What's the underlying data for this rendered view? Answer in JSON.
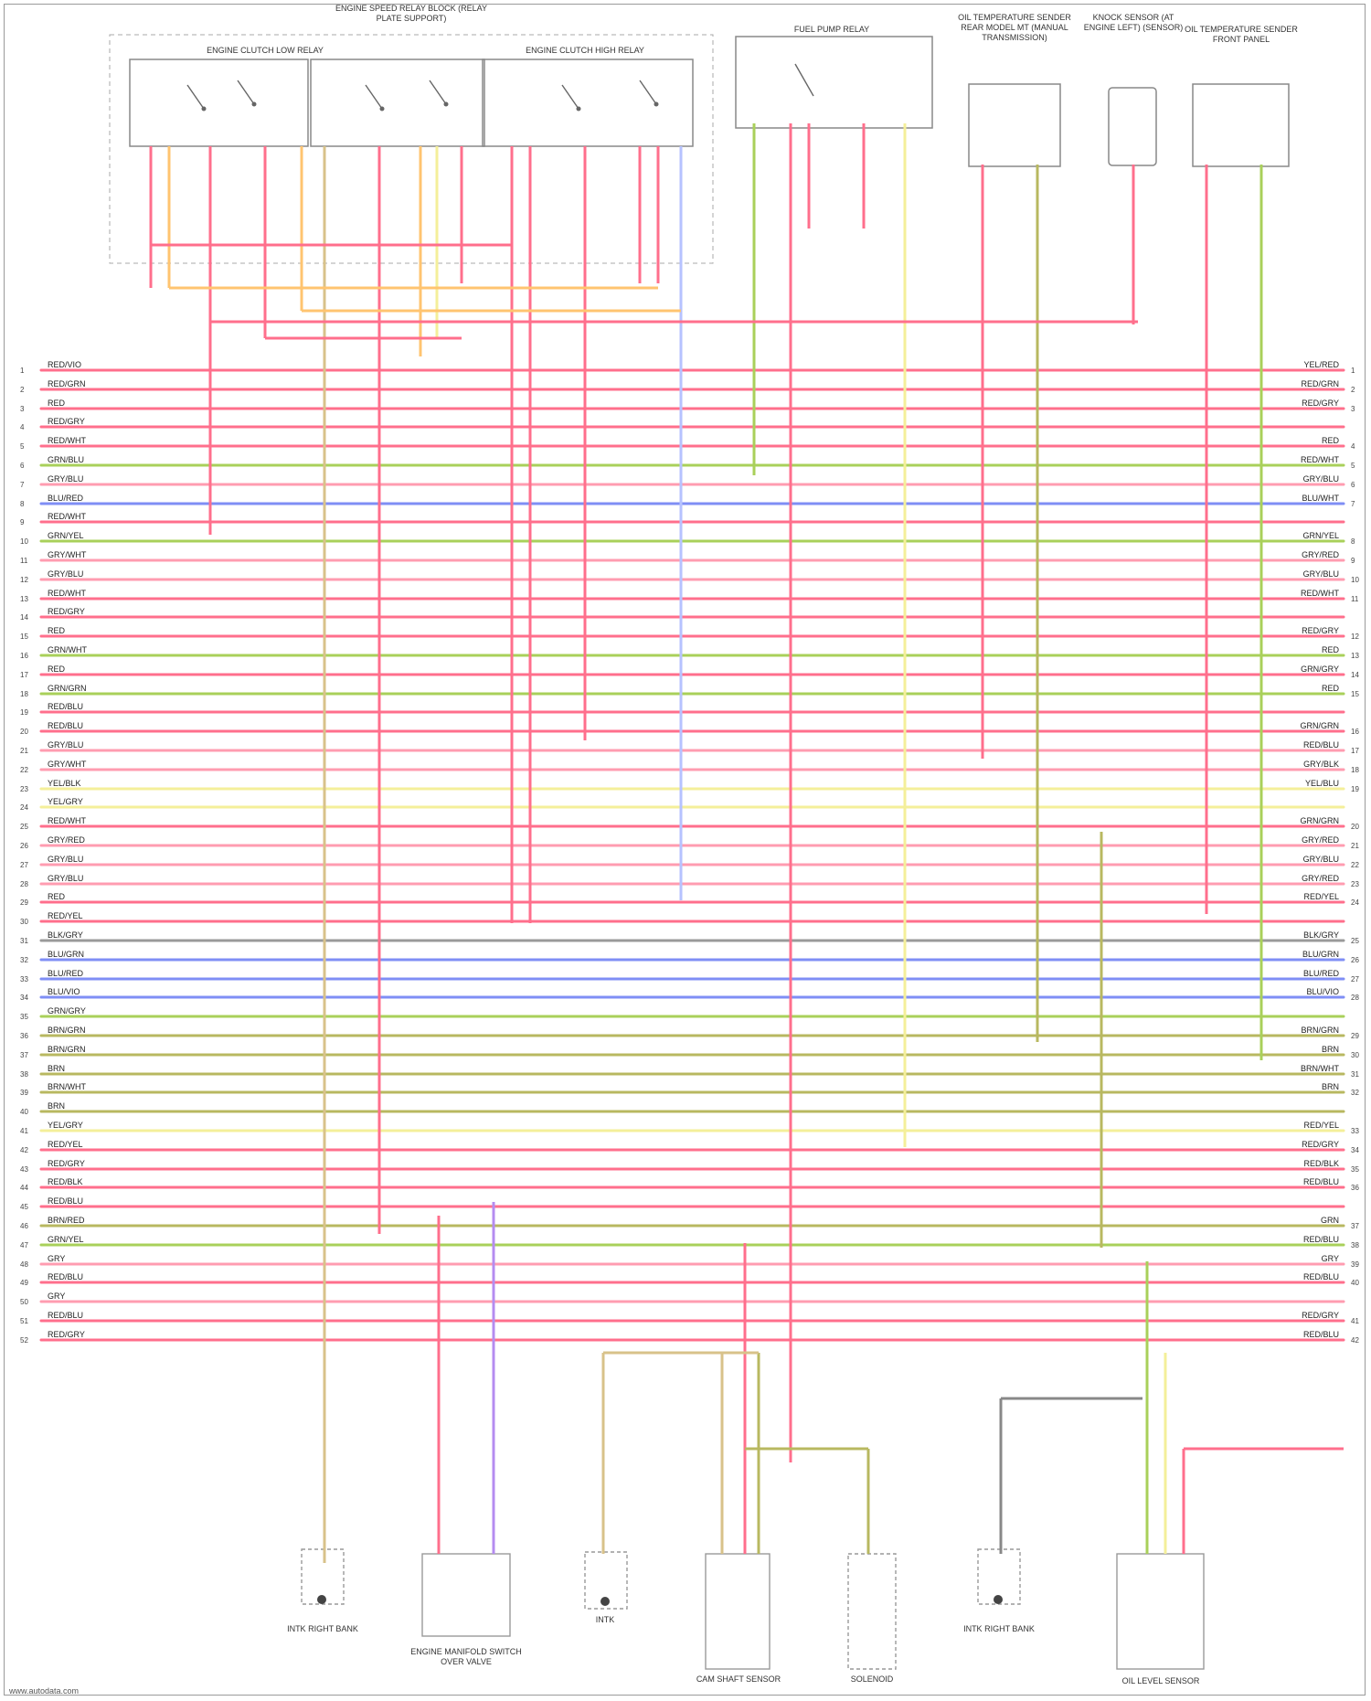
{
  "relay_block": {
    "title": "ENGINE SPEED RELAY BLOCK (RELAY PLATE SUPPORT)",
    "relays": [
      {
        "label": "ENGINE CLUTCH LOW RELAY"
      },
      {
        "label": "ENGINE CLUTCH HIGH RELAY"
      }
    ]
  },
  "components_top": [
    {
      "key": "fuel_pump_relay",
      "label": "FUEL PUMP RELAY"
    },
    {
      "key": "oil_temp_sender_manual",
      "label": "OIL TEMPERATURE SENDER REAR MODEL MT (MANUAL TRANSMISSION)"
    },
    {
      "key": "knock_sensor",
      "label": "KNOCK SENSOR (AT ENGINE LEFT) (SENSOR)"
    },
    {
      "key": "oil_temp_sender_front",
      "label": "OIL TEMPERATURE SENDER FRONT PANEL"
    }
  ],
  "components_bottom": [
    {
      "key": "c1",
      "label": "INTK RIGHT BANK"
    },
    {
      "key": "c2",
      "label": "ENGINE MANIFOLD SWITCH OVER VALVE"
    },
    {
      "key": "c3",
      "label": "INTK"
    },
    {
      "key": "c4",
      "label": "CAM SHAFT SENSOR"
    },
    {
      "key": "c5",
      "label": "SOLENOID"
    },
    {
      "key": "c6",
      "label": "INTK RIGHT BANK"
    },
    {
      "key": "c7",
      "label": "OIL LEVEL SENSOR"
    }
  ],
  "wire_labels": {
    "left": [
      "RED/VIO",
      "RED/GRN",
      "RED",
      "RED/GRY",
      "RED/WHT",
      "GRN/BLU",
      "GRY/BLU",
      "BLU/RED",
      "RED/WHT",
      "GRN/YEL",
      "GRY/WHT",
      "GRY/BLU",
      "RED/WHT",
      "RED/GRY",
      "RED",
      "GRN/WHT",
      "RED",
      "GRN/GRN",
      "RED/BLU",
      "RED/BLU",
      "GRY/BLU",
      "GRY/WHT",
      "YEL/BLK",
      "YEL/GRY",
      "RED/WHT",
      "GRY/RED",
      "GRY/BLU",
      "GRY/BLU",
      "RED",
      "RED/YEL",
      "BLK/GRY",
      "BLU/GRN",
      "BLU/RED",
      "BLU/VIO",
      "GRN/GRY",
      "BRN/GRN",
      "BRN/GRN",
      "BRN",
      "BRN/WHT",
      "BRN",
      "YEL/GRY",
      "RED/YEL",
      "RED/GRY",
      "RED/BLK",
      "RED/BLU",
      "BRN/RED",
      "GRN/YEL",
      "GRY",
      "RED/BLU",
      "GRY",
      "RED/BLU",
      "RED/GRY"
    ],
    "right": [
      "YEL/RED",
      "RED/GRN",
      "RED/GRY",
      "RED",
      "RED/WHT",
      "GRY/BLU",
      "BLU/WHT",
      "GRN/YEL",
      "GRY/RED",
      "GRY/BLU",
      "RED/WHT",
      "RED/GRY",
      "RED",
      "GRN/GRY",
      "RED",
      "GRN/GRN",
      "RED/BLU",
      "GRY/BLK",
      "YEL/BLU",
      "GRN/GRN",
      "GRY/RED",
      "GRY/BLU",
      "GRY/RED",
      "RED/YEL",
      "BLK/GRY",
      "BLU/GRN",
      "BLU/RED",
      "BLU/VIO",
      "BRN/GRN",
      "BRN",
      "BRN/WHT",
      "BRN",
      "RED/YEL",
      "RED/GRY",
      "RED/BLK",
      "RED/BLU",
      "GRN",
      "RED/BLU",
      "GRY",
      "RED/BLU",
      "RED/GRY",
      "RED/BLU"
    ]
  },
  "footer": {
    "credit": "www.autodata.com"
  }
}
